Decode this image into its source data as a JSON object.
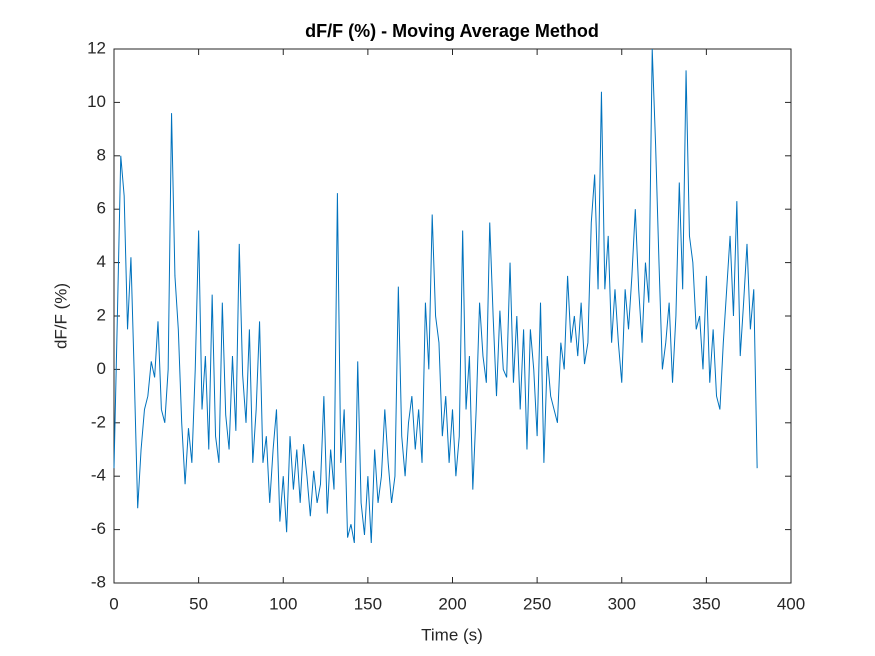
{
  "chart_data": {
    "type": "line",
    "title": "dF/F (%) - Moving Average Method",
    "x_label": "Time (s)",
    "y_label": "dF/F (%)",
    "color": "#0072bd",
    "xlim": [
      0,
      400
    ],
    "xticks": [
      0,
      50,
      100,
      150,
      200,
      250,
      300,
      350,
      400
    ],
    "ylim": [
      -8,
      12
    ],
    "yticks": [
      -8,
      -6,
      -4,
      -2,
      0,
      2,
      4,
      6,
      8,
      10,
      12
    ],
    "x": [
      0,
      2,
      4,
      6,
      8,
      10,
      12,
      14,
      16,
      18,
      20,
      22,
      24,
      26,
      28,
      30,
      32,
      34,
      36,
      38,
      40,
      42,
      44,
      46,
      48,
      50,
      52,
      54,
      56,
      58,
      60,
      62,
      64,
      66,
      68,
      70,
      72,
      74,
      76,
      78,
      80,
      82,
      84,
      86,
      88,
      90,
      92,
      94,
      96,
      98,
      100,
      102,
      104,
      106,
      108,
      110,
      112,
      114,
      116,
      118,
      120,
      122,
      124,
      126,
      128,
      130,
      132,
      134,
      136,
      138,
      140,
      142,
      144,
      146,
      148,
      150,
      152,
      154,
      156,
      158,
      160,
      162,
      164,
      166,
      168,
      170,
      172,
      174,
      176,
      178,
      180,
      182,
      184,
      186,
      188,
      190,
      192,
      194,
      196,
      198,
      200,
      202,
      204,
      206,
      208,
      210,
      212,
      214,
      216,
      218,
      220,
      222,
      224,
      226,
      228,
      230,
      232,
      234,
      236,
      238,
      240,
      242,
      244,
      246,
      248,
      250,
      252,
      254,
      256,
      258,
      260,
      262,
      264,
      266,
      268,
      270,
      272,
      274,
      276,
      278,
      280,
      282,
      284,
      286,
      288,
      290,
      292,
      294,
      296,
      298,
      300,
      302,
      304,
      306,
      308,
      310,
      312,
      314,
      316,
      318,
      320,
      322,
      324,
      326,
      328,
      330,
      332,
      334,
      336,
      338,
      340,
      342,
      344,
      346,
      348,
      350,
      352,
      354,
      356,
      358,
      360,
      362,
      364,
      366,
      368,
      370,
      372,
      374,
      376,
      378,
      380
    ],
    "values": [
      -3.7,
      2,
      8,
      6.5,
      1.5,
      4.2,
      -0.3,
      -5.2,
      -3,
      -1.5,
      -1,
      0.3,
      -0.3,
      1.8,
      -1.5,
      -2,
      0,
      9.6,
      3.5,
      1.5,
      -2,
      -4.3,
      -2.2,
      -3.5,
      0,
      5.2,
      -1.5,
      0.5,
      -3,
      2.8,
      -2.5,
      -3.5,
      2.5,
      -1.7,
      -3,
      0.5,
      -2.3,
      4.7,
      -0.2,
      -2,
      1.5,
      -3.5,
      -1.5,
      1.8,
      -3.5,
      -2.5,
      -5,
      -3,
      -1.5,
      -5.7,
      -4,
      -6.1,
      -2.5,
      -4.5,
      -3,
      -5,
      -2.8,
      -4,
      -5.5,
      -3.8,
      -5,
      -4.3,
      -1,
      -5.4,
      -3,
      -4.5,
      6.6,
      -3.5,
      -1.5,
      -6.3,
      -5.8,
      -6.5,
      0.3,
      -5,
      -6.2,
      -4,
      -6.5,
      -3,
      -5,
      -4,
      -1.5,
      -3.5,
      -5,
      -4,
      3.1,
      -2.5,
      -4,
      -2,
      -1,
      -3,
      -1.5,
      -3.5,
      2.5,
      0,
      5.8,
      2,
      1,
      -2.5,
      -1,
      -3.5,
      -1.5,
      -4,
      -2.5,
      5.2,
      -1.5,
      0.5,
      -4.5,
      -1.5,
      2.5,
      0.5,
      -0.5,
      5.5,
      2,
      -1,
      2.2,
      0,
      -0.3,
      4,
      -0.5,
      2,
      -1.5,
      1.5,
      -3,
      1.5,
      0,
      -2.5,
      2.5,
      -3.5,
      0.5,
      -1,
      -1.5,
      -2,
      1,
      0,
      3.5,
      1,
      2,
      0.5,
      2.5,
      0.2,
      1,
      5.5,
      7.3,
      3,
      10.4,
      3,
      5,
      1,
      3,
      1,
      -0.5,
      3,
      1.5,
      3.5,
      6,
      3,
      1,
      4,
      2.5,
      12,
      8.4,
      4,
      0,
      1,
      2.5,
      -0.5,
      2,
      7,
      3,
      11.2,
      5,
      4,
      1.5,
      2,
      0,
      3.5,
      -0.5,
      1.5,
      -1,
      -1.5,
      1,
      3,
      5,
      2,
      6.3,
      0.5,
      2.5,
      4.7,
      1.5,
      3,
      -3.7
    ]
  }
}
